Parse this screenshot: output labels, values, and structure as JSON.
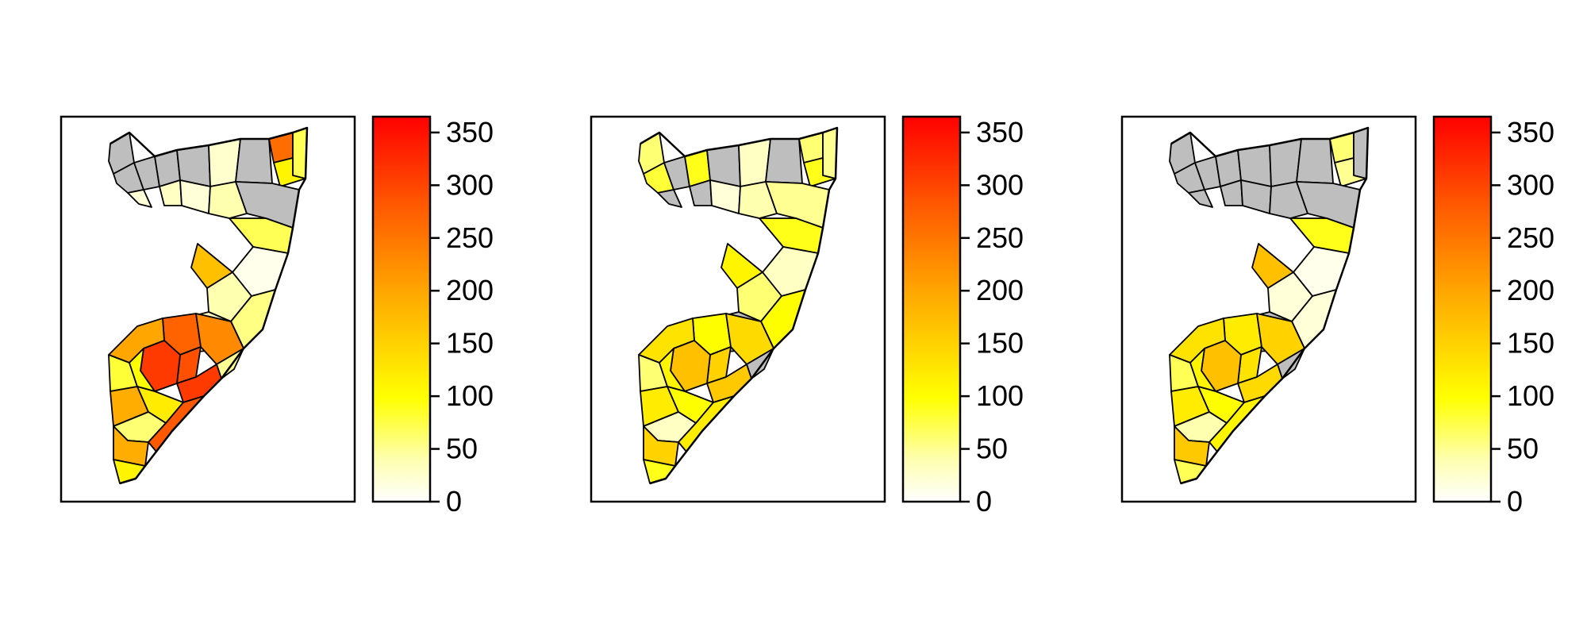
{
  "figure": {
    "panels": [
      {
        "id": "panel-1"
      },
      {
        "id": "panel-2"
      },
      {
        "id": "panel-3"
      }
    ]
  },
  "legend": {
    "min": 0,
    "max": 365,
    "ticks": [
      "0",
      "50",
      "100",
      "150",
      "200",
      "250",
      "300",
      "350"
    ],
    "tick_values": [
      0,
      50,
      100,
      150,
      200,
      250,
      300,
      350
    ],
    "colors": {
      "low": "#FFFFFF",
      "mid": "#FFFF00",
      "high_mid": "#FFA500",
      "high": "#FF0000",
      "missing": "#BEBEBE"
    }
  },
  "chart_data": [
    {
      "type": "heatmap",
      "subtype": "choropleth",
      "region": "Somalia districts",
      "scale": {
        "min": 0,
        "max": 365,
        "ticks": [
          0,
          50,
          100,
          150,
          200,
          250,
          300,
          350
        ]
      },
      "missing_color": "#BEBEBE",
      "districts": [
        {
          "id": "n1",
          "value": null
        },
        {
          "id": "n2",
          "value": null
        },
        {
          "id": "n3",
          "value": null
        },
        {
          "id": "n4",
          "value": 20
        },
        {
          "id": "n5",
          "value": null
        },
        {
          "id": "n6",
          "value": 30
        },
        {
          "id": "n7",
          "value": null
        },
        {
          "id": "n8",
          "value": 20
        },
        {
          "id": "n9",
          "value": 25
        },
        {
          "id": "n10",
          "value": null
        },
        {
          "id": "n11",
          "value": 260
        },
        {
          "id": "n12",
          "value": 70
        },
        {
          "id": "n13",
          "value": 110
        },
        {
          "id": "n14",
          "value": 40
        },
        {
          "id": "n15",
          "value": null
        },
        {
          "id": "c1",
          "value": 70
        },
        {
          "id": "c2",
          "value": 10
        },
        {
          "id": "c3",
          "value": 170
        },
        {
          "id": "c4",
          "value": 40
        },
        {
          "id": "c5",
          "value": 55
        },
        {
          "id": "c6",
          "value": 30
        },
        {
          "id": "s1",
          "value": 270
        },
        {
          "id": "s2",
          "value": 200
        },
        {
          "id": "s3",
          "value": 290
        },
        {
          "id": "s4",
          "value": 310
        },
        {
          "id": "s5",
          "value": 230
        },
        {
          "id": "s6",
          "value": 80
        },
        {
          "id": "s7",
          "value": 100
        },
        {
          "id": "s8",
          "value": 50
        },
        {
          "id": "s9",
          "value": 310
        },
        {
          "id": "s10",
          "value": 190
        },
        {
          "id": "s11",
          "value": 120
        },
        {
          "id": "s12",
          "value": 60
        },
        {
          "id": "s13",
          "value": 190
        },
        {
          "id": "s14",
          "value": 110
        },
        {
          "id": "s15",
          "value": 280
        }
      ]
    },
    {
      "type": "heatmap",
      "subtype": "choropleth",
      "region": "Somalia districts",
      "scale": {
        "min": 0,
        "max": 365,
        "ticks": [
          0,
          50,
          100,
          150,
          200,
          250,
          300,
          350
        ]
      },
      "missing_color": "#BEBEBE",
      "districts": [
        {
          "id": "n1",
          "value": 60
        },
        {
          "id": "n2",
          "value": 80
        },
        {
          "id": "n3",
          "value": null
        },
        {
          "id": "n4",
          "value": null
        },
        {
          "id": "n5",
          "value": 90
        },
        {
          "id": "n6",
          "value": null
        },
        {
          "id": "n7",
          "value": null
        },
        {
          "id": "n8",
          "value": 20
        },
        {
          "id": "n9",
          "value": 30
        },
        {
          "id": "n10",
          "value": null
        },
        {
          "id": "n11",
          "value": 60
        },
        {
          "id": "n12",
          "value": 50
        },
        {
          "id": "n13",
          "value": 90
        },
        {
          "id": "n14",
          "value": 40
        },
        {
          "id": "n15",
          "value": 50
        },
        {
          "id": "c1",
          "value": 90
        },
        {
          "id": "c2",
          "value": 30
        },
        {
          "id": "c3",
          "value": 110
        },
        {
          "id": "c4",
          "value": 60
        },
        {
          "id": "c5",
          "value": 100
        },
        {
          "id": "c6",
          "value": null
        },
        {
          "id": "s1",
          "value": 100
        },
        {
          "id": "s2",
          "value": 130
        },
        {
          "id": "s3",
          "value": 150
        },
        {
          "id": "s4",
          "value": 170
        },
        {
          "id": "s5",
          "value": 140
        },
        {
          "id": "s6",
          "value": 60
        },
        {
          "id": "s7",
          "value": 110
        },
        {
          "id": "s8",
          "value": null
        },
        {
          "id": "s9",
          "value": 160
        },
        {
          "id": "s10",
          "value": 120
        },
        {
          "id": "s11",
          "value": 100
        },
        {
          "id": "s12",
          "value": 30
        },
        {
          "id": "s13",
          "value": 150
        },
        {
          "id": "s14",
          "value": 90
        },
        {
          "id": "s15",
          "value": 120
        }
      ]
    },
    {
      "type": "heatmap",
      "subtype": "choropleth",
      "region": "Somalia districts",
      "scale": {
        "min": 0,
        "max": 365,
        "ticks": [
          0,
          50,
          100,
          150,
          200,
          250,
          300,
          350
        ]
      },
      "missing_color": "#BEBEBE",
      "districts": [
        {
          "id": "n1",
          "value": null
        },
        {
          "id": "n2",
          "value": null
        },
        {
          "id": "n3",
          "value": null
        },
        {
          "id": "n4",
          "value": null
        },
        {
          "id": "n5",
          "value": null
        },
        {
          "id": "n6",
          "value": null
        },
        {
          "id": "n7",
          "value": null
        },
        {
          "id": "n8",
          "value": null
        },
        {
          "id": "n9",
          "value": null
        },
        {
          "id": "n10",
          "value": null
        },
        {
          "id": "n11",
          "value": 60
        },
        {
          "id": "n12",
          "value": null
        },
        {
          "id": "n13",
          "value": 50
        },
        {
          "id": "n14",
          "value": null
        },
        {
          "id": "n15",
          "value": null
        },
        {
          "id": "c1",
          "value": 90
        },
        {
          "id": "c2",
          "value": 10
        },
        {
          "id": "c3",
          "value": 170
        },
        {
          "id": "c4",
          "value": 20
        },
        {
          "id": "c5",
          "value": 20
        },
        {
          "id": "c6",
          "value": null
        },
        {
          "id": "s1",
          "value": 120
        },
        {
          "id": "s2",
          "value": 130
        },
        {
          "id": "s3",
          "value": 130
        },
        {
          "id": "s4",
          "value": 170
        },
        {
          "id": "s5",
          "value": 150
        },
        {
          "id": "s6",
          "value": 70
        },
        {
          "id": "s7",
          "value": 110
        },
        {
          "id": "s8",
          "value": null
        },
        {
          "id": "s9",
          "value": 140
        },
        {
          "id": "s10",
          "value": 120
        },
        {
          "id": "s11",
          "value": 100
        },
        {
          "id": "s12",
          "value": 40
        },
        {
          "id": "s13",
          "value": 160
        },
        {
          "id": "s14",
          "value": 70
        },
        {
          "id": "s15",
          "value": 110
        }
      ]
    }
  ]
}
